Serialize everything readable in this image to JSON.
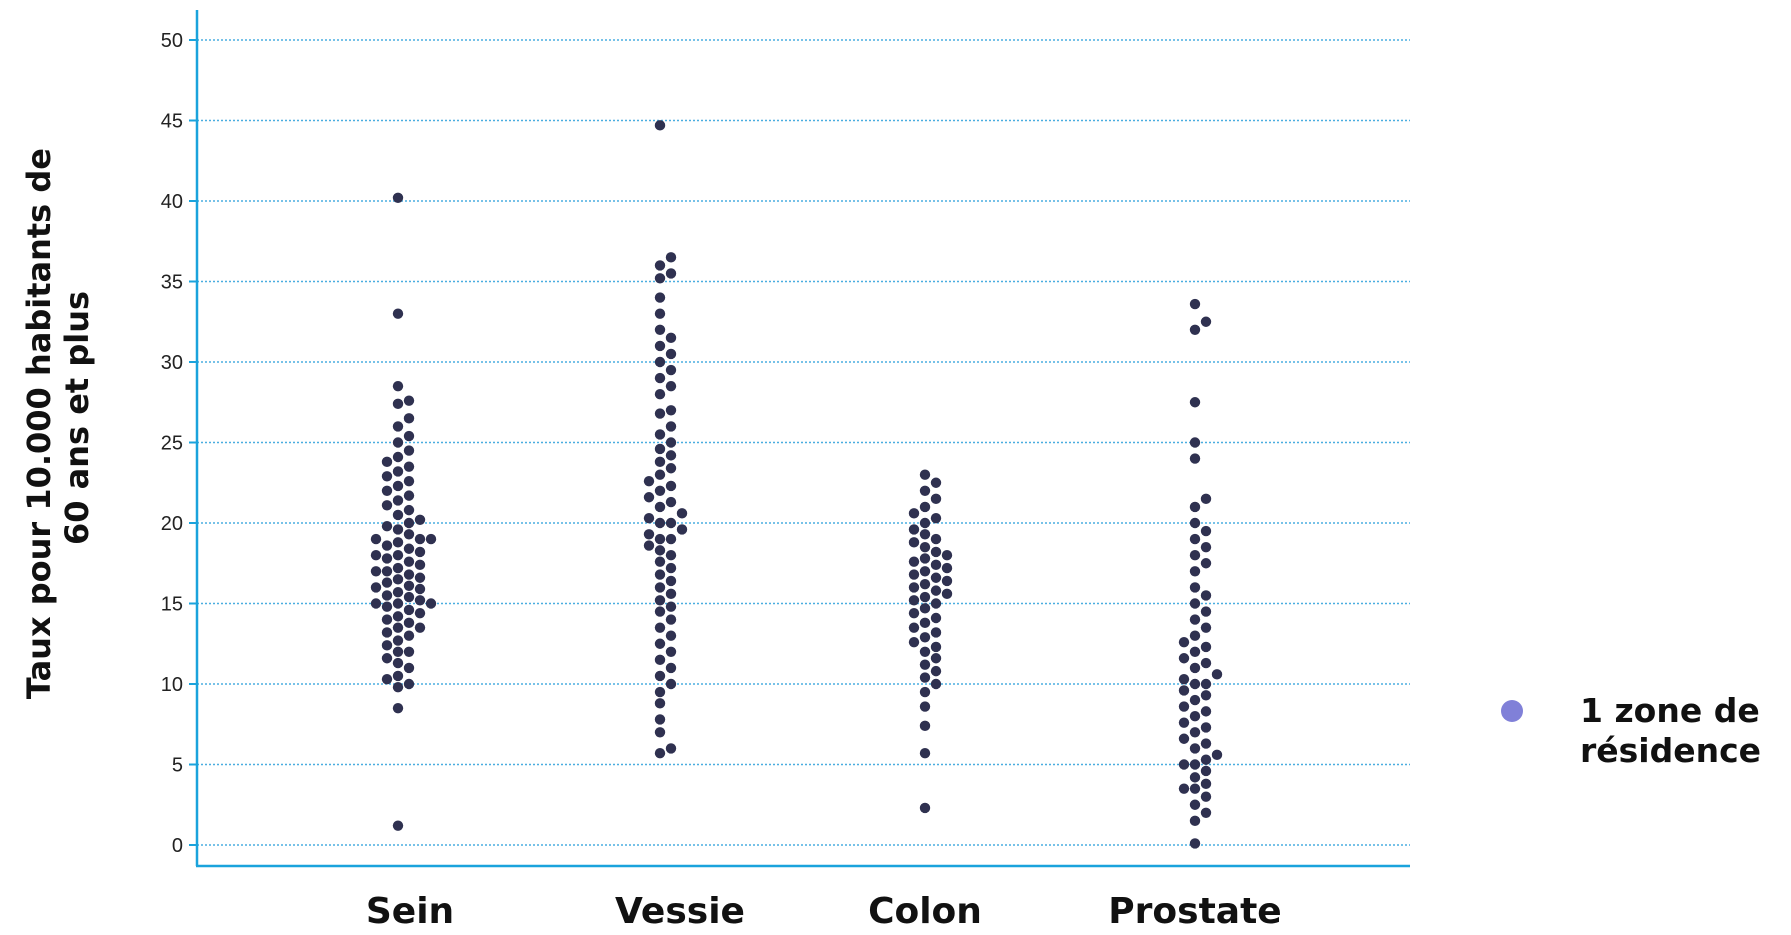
{
  "chart_data": {
    "type": "scatter",
    "subtype": "beeswarm",
    "ylabel": "Taux pour 10.000 habitants de 60 ans et plus",
    "ylabel_lines": [
      "Taux pour 10.000 habitants de",
      "60 ans et plus"
    ],
    "xlabel": "",
    "ylim": [
      0,
      50
    ],
    "yticks": [
      "0",
      "5",
      "10",
      "15",
      "20",
      "25",
      "30",
      "35",
      "40",
      "45",
      "50"
    ],
    "grid": true,
    "legend": {
      "position": "right",
      "label_lines": [
        "1 zone de",
        "résidence"
      ],
      "label": "1 zone de résidence",
      "marker_color": "#8080d8"
    },
    "colors": {
      "dot": "#2f3150",
      "axis": "#1aa3dc",
      "grid": "#4aaee0"
    },
    "categories": [
      "Sein",
      "Vessie",
      "Colon",
      "Prostate"
    ],
    "series": [
      {
        "values": [
          1.2,
          8.5,
          9.8,
          10.0,
          10.3,
          10.5,
          11.0,
          11.3,
          11.6,
          12.0,
          12.0,
          12.4,
          12.7,
          13.0,
          13.2,
          13.5,
          13.5,
          13.8,
          14.0,
          14.2,
          14.4,
          14.6,
          14.8,
          15.0,
          15.0,
          15.0,
          15.2,
          15.4,
          15.5,
          15.7,
          15.9,
          16.0,
          16.1,
          16.3,
          16.5,
          16.6,
          16.8,
          17.0,
          17.0,
          17.2,
          17.4,
          17.6,
          17.8,
          18.0,
          18.0,
          18.2,
          18.4,
          18.6,
          18.8,
          19.0,
          19.0,
          19.0,
          19.3,
          19.6,
          19.8,
          20.0,
          20.2,
          20.5,
          20.8,
          21.1,
          21.4,
          21.7,
          22.0,
          22.3,
          22.6,
          22.9,
          23.2,
          23.5,
          23.8,
          24.1,
          24.5,
          25.0,
          25.4,
          26.0,
          26.5,
          27.4,
          27.6,
          28.5,
          33.0,
          40.2
        ]
      },
      {
        "values": [
          5.7,
          6.0,
          7.0,
          7.8,
          8.8,
          9.5,
          10.0,
          10.5,
          11.0,
          11.5,
          12.0,
          12.5,
          13.0,
          13.5,
          14.0,
          14.5,
          14.8,
          15.2,
          15.6,
          16.0,
          16.4,
          16.8,
          17.2,
          17.6,
          18.0,
          18.3,
          18.6,
          19.0,
          19.0,
          19.3,
          19.6,
          20.0,
          20.0,
          20.3,
          20.6,
          21.0,
          21.3,
          21.6,
          22.0,
          22.3,
          22.6,
          23.0,
          23.4,
          23.8,
          24.2,
          24.6,
          25.0,
          25.5,
          26.0,
          26.8,
          27.0,
          28.0,
          28.5,
          29.0,
          29.5,
          30.0,
          30.5,
          31.0,
          31.5,
          32.0,
          33.0,
          34.0,
          35.2,
          35.5,
          36.0,
          36.5,
          44.7
        ]
      },
      {
        "values": [
          2.3,
          5.7,
          7.4,
          8.6,
          9.5,
          10.0,
          10.4,
          10.8,
          11.2,
          11.6,
          12.0,
          12.3,
          12.6,
          12.9,
          13.2,
          13.5,
          13.8,
          14.1,
          14.4,
          14.7,
          15.0,
          15.2,
          15.4,
          15.6,
          15.8,
          16.0,
          16.2,
          16.4,
          16.6,
          16.8,
          17.0,
          17.2,
          17.4,
          17.6,
          17.8,
          18.0,
          18.2,
          18.5,
          18.8,
          19.0,
          19.3,
          19.6,
          20.0,
          20.3,
          20.6,
          21.0,
          21.5,
          22.0,
          22.5,
          23.0
        ]
      },
      {
        "values": [
          0.1,
          1.5,
          2.0,
          2.5,
          3.0,
          3.5,
          3.5,
          3.8,
          4.2,
          4.6,
          5.0,
          5.0,
          5.3,
          5.6,
          6.0,
          6.3,
          6.6,
          7.0,
          7.3,
          7.6,
          8.0,
          8.3,
          8.6,
          9.0,
          9.3,
          9.6,
          10.0,
          10.0,
          10.3,
          10.6,
          11.0,
          11.3,
          11.6,
          12.0,
          12.3,
          12.6,
          13.0,
          13.5,
          14.0,
          14.5,
          15.0,
          15.5,
          16.0,
          17.0,
          17.5,
          18.0,
          18.5,
          19.0,
          19.5,
          20.0,
          21.0,
          21.5,
          24.0,
          25.0,
          27.5,
          32.0,
          32.5,
          33.6
        ]
      }
    ]
  }
}
